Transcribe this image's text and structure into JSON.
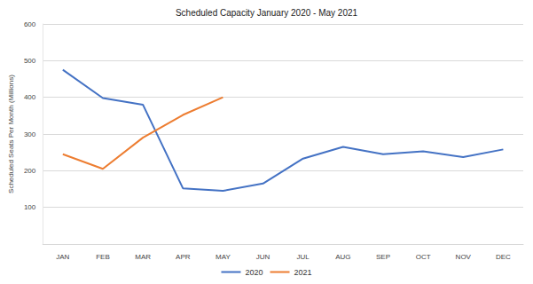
{
  "chart_data": {
    "type": "line",
    "title": "Scheduled Capacity January 2020 - May 2021",
    "y_label": "Scheduled Seats Per Month (Millions)",
    "categories": [
      "JAN",
      "FEB",
      "MAR",
      "APR",
      "MAY",
      "JUN",
      "JUL",
      "AUG",
      "SEP",
      "OCT",
      "NOV",
      "DEC"
    ],
    "series": [
      {
        "name": "2020",
        "color": "#4472c4",
        "values": [
          475,
          398,
          380,
          152,
          145,
          165,
          233,
          265,
          245,
          253,
          237,
          258
        ]
      },
      {
        "name": "2021",
        "color": "#ed7d31",
        "values": [
          245,
          205,
          290,
          352,
          400,
          null,
          null,
          null,
          null,
          null,
          null,
          null
        ]
      }
    ],
    "ylim": [
      0,
      600
    ],
    "yticks": [
      100,
      200,
      300,
      400,
      500,
      600
    ],
    "grid": true,
    "legend": "bottom"
  }
}
